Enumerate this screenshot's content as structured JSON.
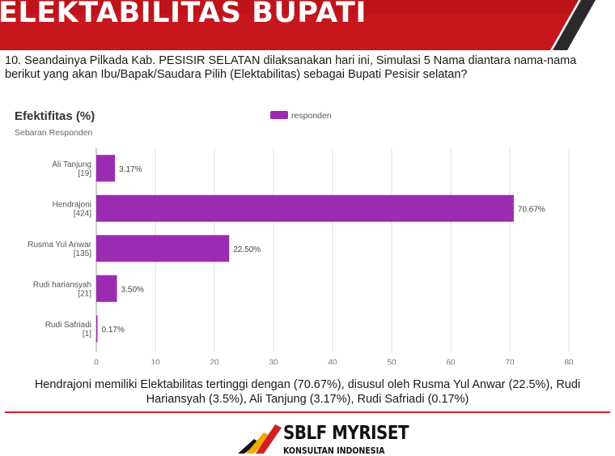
{
  "header": {
    "title": "ELEKTABILITAS BUPATI"
  },
  "question": "10. Seandainya Pilkada Kab. PESISIR SELATAN dilaksanakan hari ini, Simulasi 5 Nama diantara nama-nama berikut yang akan Ibu/Bapak/Saudara Pilih (Elektabilitas) sebagai Bupati Pesisir selatan?",
  "chart_data": {
    "type": "bar",
    "orientation": "horizontal",
    "title": "Efektifitas (%)",
    "subtitle": "Sebaran Responden",
    "categories": [
      "Ali Tanjung",
      "Hendrajoni",
      "Rusma Yul Anwar",
      "Rudi hariansyah",
      "Rudi Safriadi"
    ],
    "counts": [
      "[19]",
      "[424]",
      "[135]",
      "[21]",
      "[1]"
    ],
    "series": [
      {
        "name": "responden",
        "values": [
          3.17,
          70.67,
          22.5,
          3.5,
          0.17
        ]
      }
    ],
    "data_labels": [
      "3.17%",
      "70.67%",
      "22.50%",
      "3.50%",
      "0.17%"
    ],
    "x_ticks": [
      0,
      10,
      20,
      30,
      40,
      50,
      60,
      70,
      80
    ],
    "xlim": [
      0,
      80
    ],
    "grid": true,
    "legend_position": "top-center",
    "bar_color": "#9b2bb0"
  },
  "summary": "Hendrajoni memiliki Elektabilitas tertinggi dengan (70.67%), disusul oleh Rusma Yul Anwar (22.5%), Rudi Hariansyah (3.5%), Ali Tanjung (3.17%), Rudi Safriadi (0.17%)",
  "footer": {
    "brand": "SBLF MYRISET",
    "tagline": "KONSULTAN INDONESIA",
    "accent": "#d01f24",
    "logo_colors": [
      "#d01f24",
      "#f2a900",
      "#111111"
    ]
  }
}
